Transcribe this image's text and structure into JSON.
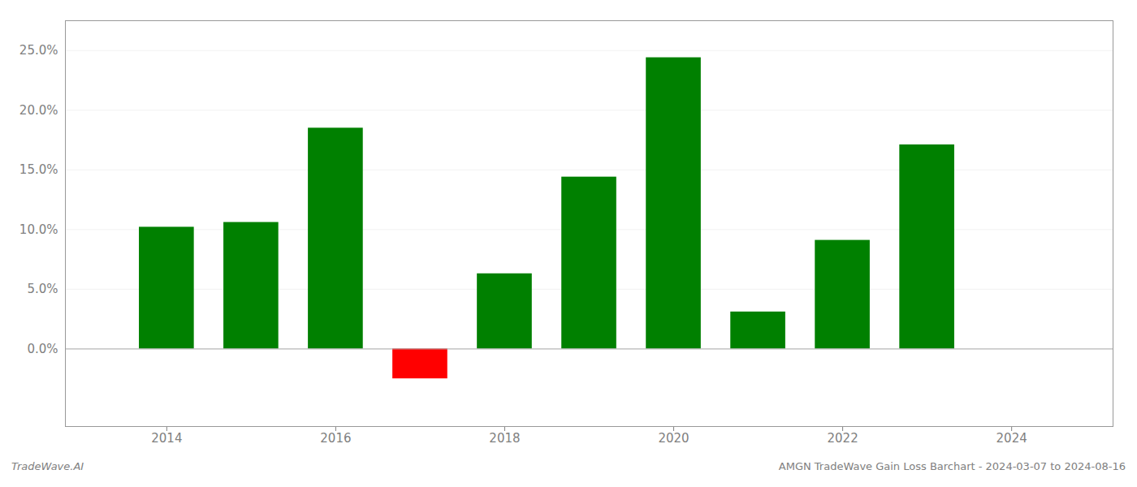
{
  "chart_data": {
    "type": "bar",
    "x": [
      2014,
      2015,
      2016,
      2017,
      2018,
      2019,
      2020,
      2021,
      2022,
      2023
    ],
    "values": [
      0.102,
      0.106,
      0.185,
      -0.025,
      0.063,
      0.144,
      0.244,
      0.031,
      0.091,
      0.171
    ],
    "colors": [
      "#008000",
      "#008000",
      "#008000",
      "#ff0000",
      "#008000",
      "#008000",
      "#008000",
      "#008000",
      "#008000",
      "#008000"
    ],
    "xlim": [
      2012.8,
      2025.2
    ],
    "xticks": [
      2014,
      2016,
      2018,
      2020,
      2022,
      2024
    ],
    "ylim": [
      -0.065,
      0.275
    ],
    "yticks": [
      {
        "value": 0.0,
        "label": "0.0%"
      },
      {
        "value": 0.05,
        "label": "5.0%"
      },
      {
        "value": 0.1,
        "label": "10.0%"
      },
      {
        "value": 0.15,
        "label": "15.0%"
      },
      {
        "value": 0.2,
        "label": "20.0%"
      },
      {
        "value": 0.25,
        "label": "25.0%"
      }
    ],
    "grid": true,
    "annotations": [
      "TradeWave.AI",
      "AMGN TradeWave Gain Loss Barchart - 2024-03-07 to 2024-08-16"
    ]
  }
}
